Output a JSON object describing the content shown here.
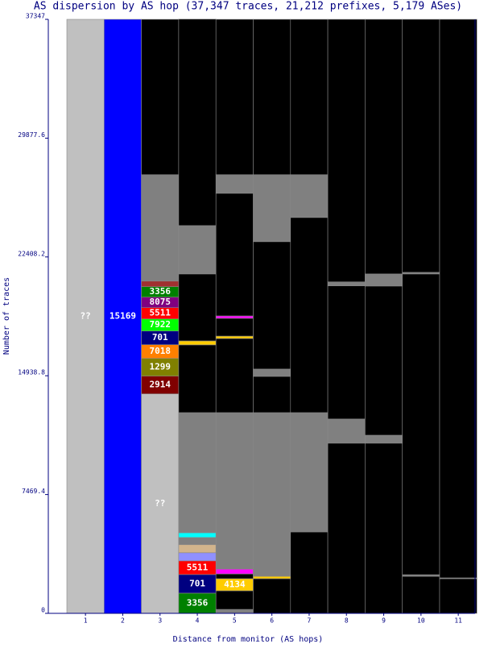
{
  "chart_data": {
    "type": "stacked-column",
    "title": "AS dispersion by AS hop (37,347 traces, 21,212 prefixes, 5,179 ASes)",
    "x_label": "Distance from monitor (AS hops)",
    "y_label": "Number of traces",
    "ylim": [
      0,
      37347
    ],
    "yticks": [
      0,
      7469.4,
      14938.8,
      22408.2,
      29877.6,
      37347
    ],
    "categories": [
      "1",
      "2",
      "3",
      "4",
      "5",
      "6",
      "7",
      "8",
      "9",
      "10",
      "11"
    ],
    "columns": [
      {
        "segments": [
          {
            "value": 37347,
            "color": "#c0c0c0",
            "label": "??"
          }
        ]
      },
      {
        "segments": [
          {
            "value": 37347,
            "color": "#0000ff",
            "label": "15169"
          }
        ]
      },
      {
        "segments": [
          {
            "value": 13800,
            "color": "#c0c0c0",
            "label": "??"
          },
          {
            "value": 1115,
            "color": "#800000",
            "label": "2914"
          },
          {
            "value": 1115,
            "color": "#808000",
            "label": "1299"
          },
          {
            "value": 860,
            "color": "#ff8000",
            "label": "7018"
          },
          {
            "value": 860,
            "color": "#000080",
            "label": "701"
          },
          {
            "value": 760,
            "color": "#00ff00",
            "label": "7922"
          },
          {
            "value": 710,
            "color": "#ff0000",
            "label": "5511"
          },
          {
            "value": 660,
            "color": "#800080",
            "label": "8075"
          },
          {
            "value": 660,
            "color": "#008000",
            "label": "3356"
          },
          {
            "value": 350,
            "color": "#a03030"
          },
          {
            "value": 6690,
            "color": "#808080"
          },
          {
            "value": 9767,
            "color": "#000000"
          }
        ]
      },
      {
        "segments": [
          {
            "value": 1270,
            "color": "#008000",
            "label": "3356"
          },
          {
            "value": 1170,
            "color": "#000080",
            "label": "701"
          },
          {
            "value": 860,
            "color": "#ff0000",
            "label": "5511"
          },
          {
            "value": 510,
            "color": "#9090ff"
          },
          {
            "value": 510,
            "color": "#d2b48c"
          },
          {
            "value": 450,
            "color": "#808080"
          },
          {
            "value": 300,
            "color": "#00ffff"
          },
          {
            "value": 7550,
            "color": "#808080"
          },
          {
            "value": 4260,
            "color": "#000000"
          },
          {
            "value": 250,
            "color": "#ffcc00"
          },
          {
            "value": 4210,
            "color": "#000000"
          },
          {
            "value": 3040,
            "color": "#808080"
          },
          {
            "value": 12980,
            "color": "#000000"
          }
        ]
      },
      {
        "segments": [
          {
            "value": 250,
            "color": "#808080"
          },
          {
            "value": 1170,
            "color": "#000000"
          },
          {
            "value": 760,
            "color": "#ffcc00",
            "label": "4134"
          },
          {
            "value": 300,
            "color": "#000000"
          },
          {
            "value": 300,
            "color": "#ff00ff"
          },
          {
            "value": 9840,
            "color": "#808080"
          },
          {
            "value": 4660,
            "color": "#000000"
          },
          {
            "value": 150,
            "color": "#ffcc00"
          },
          {
            "value": 1120,
            "color": "#000000"
          },
          {
            "value": 150,
            "color": "#ff00ff"
          },
          {
            "value": 7710,
            "color": "#000000"
          },
          {
            "value": 1170,
            "color": "#808080"
          },
          {
            "value": 9767,
            "color": "#000000"
          }
        ]
      },
      {
        "segments": [
          {
            "value": 2180,
            "color": "#000000"
          },
          {
            "value": 150,
            "color": "#ffcc00"
          },
          {
            "value": 10290,
            "color": "#808080"
          },
          {
            "value": 2280,
            "color": "#000000"
          },
          {
            "value": 460,
            "color": "#808080"
          },
          {
            "value": 8010,
            "color": "#000000"
          },
          {
            "value": 4210,
            "color": "#808080"
          },
          {
            "value": 9767,
            "color": "#000000"
          }
        ]
      },
      {
        "segments": [
          {
            "value": 5120,
            "color": "#000000"
          },
          {
            "value": 7500,
            "color": "#808080"
          },
          {
            "value": 12270,
            "color": "#000000"
          },
          {
            "value": 2690,
            "color": "#808080"
          },
          {
            "value": 9767,
            "color": "#000000"
          }
        ]
      },
      {
        "segments": [
          {
            "value": 10700,
            "color": "#000000"
          },
          {
            "value": 1520,
            "color": "#808080"
          },
          {
            "value": 8370,
            "color": "#000000"
          },
          {
            "value": 250,
            "color": "#808080"
          },
          {
            "value": 16507,
            "color": "#000000"
          }
        ]
      },
      {
        "segments": [
          {
            "value": 10700,
            "color": "#000000"
          },
          {
            "value": 500,
            "color": "#808080"
          },
          {
            "value": 9380,
            "color": "#000000"
          },
          {
            "value": 760,
            "color": "#808080"
          },
          {
            "value": 16007,
            "color": "#000000"
          }
        ]
      },
      {
        "segments": [
          {
            "value": 2330,
            "color": "#000000"
          },
          {
            "value": 100,
            "color": "#808080"
          },
          {
            "value": 18910,
            "color": "#000000"
          },
          {
            "value": 100,
            "color": "#808080"
          },
          {
            "value": 15907,
            "color": "#000000"
          }
        ]
      },
      {
        "segments": [
          {
            "value": 2180,
            "color": "#000000"
          },
          {
            "value": 50,
            "color": "#808080"
          },
          {
            "value": 35117,
            "color": "#000000"
          }
        ]
      }
    ]
  }
}
